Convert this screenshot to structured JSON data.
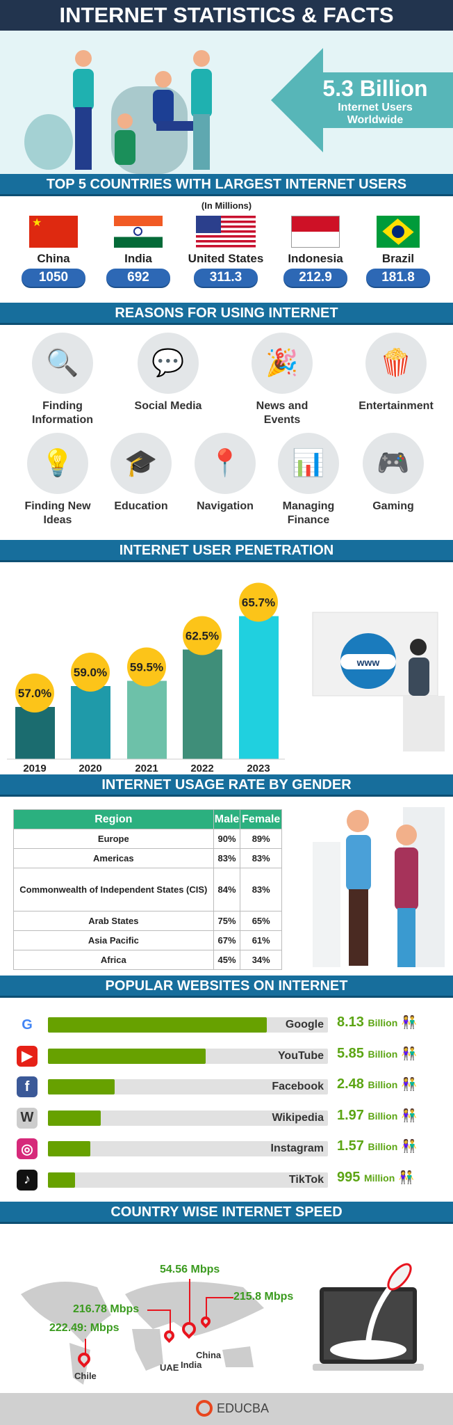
{
  "title": "INTERNET STATISTICS & FACTS",
  "hero": {
    "value": "5.3 Billion",
    "line1": "Internet Users",
    "line2": "Worldwide"
  },
  "top5": {
    "heading": "TOP 5 COUNTRIES WITH LARGEST INTERNET USERS",
    "unit": "(In Millions)",
    "countries": [
      {
        "name": "China",
        "value": "1050"
      },
      {
        "name": "India",
        "value": "692"
      },
      {
        "name": "United States",
        "value": "311.3"
      },
      {
        "name": "Indonesia",
        "value": "212.9"
      },
      {
        "name": "Brazil",
        "value": "181.8"
      }
    ]
  },
  "reasons": {
    "heading": "REASONS FOR USING INTERNET",
    "items": [
      {
        "label": "Finding Information",
        "icon": "magnifier-document-icon"
      },
      {
        "label": "Social Media",
        "icon": "social-media-icon"
      },
      {
        "label": "News and Events",
        "icon": "event-icon"
      },
      {
        "label": "Entertainment",
        "icon": "popcorn-video-icon"
      },
      {
        "label": "Finding New Ideas",
        "icon": "lightbulb-icon"
      },
      {
        "label": "Education",
        "icon": "graduation-cap-icon"
      },
      {
        "label": "Navigation",
        "icon": "location-pin-icon"
      },
      {
        "label": "Managing Finance",
        "icon": "finance-icon"
      },
      {
        "label": "Gaming",
        "icon": "gamepad-icon"
      }
    ]
  },
  "penetration": {
    "heading": "INTERNET USER PENETRATION"
  },
  "chart_data": {
    "type": "bar",
    "categories": [
      "2019",
      "2020",
      "2021",
      "2022",
      "2023"
    ],
    "values": [
      57.0,
      59.0,
      59.5,
      62.5,
      65.7
    ],
    "labels": [
      "57.0%",
      "59.0%",
      "59.5%",
      "62.5%",
      "65.7%"
    ],
    "colors": [
      "#1b6c6f",
      "#1f9aa9",
      "#6dc1a9",
      "#3f8e79",
      "#20d0df"
    ],
    "label_color": "#fcc419"
  },
  "gender": {
    "heading": "INTERNET USAGE RATE BY GENDER",
    "columns": [
      "Region",
      "Male",
      "Female"
    ],
    "rows": [
      [
        "Europe",
        "90%",
        "89%"
      ],
      [
        "Americas",
        "83%",
        "83%"
      ],
      [
        "Commonwealth of Independent States (CIS)",
        "84%",
        "83%"
      ],
      [
        "Arab States",
        "75%",
        "65%"
      ],
      [
        "Asia Pacific",
        "67%",
        "61%"
      ],
      [
        "Africa",
        "45%",
        "34%"
      ]
    ]
  },
  "websites": {
    "heading": "POPULAR WEBSITES ON INTERNET",
    "items": [
      {
        "name": "Google",
        "value": "8.13",
        "unit": "Billion",
        "users_billion": 8.13,
        "icon": "google-icon",
        "color": "#ffffff"
      },
      {
        "name": "YouTube",
        "value": "5.85",
        "unit": "Billion",
        "users_billion": 5.85,
        "icon": "youtube-icon",
        "color": "#e62117"
      },
      {
        "name": "Facebook",
        "value": "2.48",
        "unit": "Billion",
        "users_billion": 2.48,
        "icon": "facebook-icon",
        "color": "#3b5998"
      },
      {
        "name": "Wikipedia",
        "value": "1.97",
        "unit": "Billion",
        "users_billion": 1.97,
        "icon": "wikipedia-icon",
        "color": "#cccccc"
      },
      {
        "name": "Instagram",
        "value": "1.57",
        "unit": "Billion",
        "users_billion": 1.57,
        "icon": "instagram-icon",
        "color": "#d6297a"
      },
      {
        "name": "TikTok",
        "value": "995",
        "unit": "Million",
        "users_billion": 0.995,
        "icon": "tiktok-icon",
        "color": "#111111"
      }
    ]
  },
  "speed": {
    "heading": "COUNTRY WISE INTERNET SPEED",
    "items": [
      {
        "country": "Chile",
        "speed": "222.49: Mbps"
      },
      {
        "country": "UAE",
        "speed": "216.78 Mbps"
      },
      {
        "country": "India",
        "speed": "54.56 Mbps"
      },
      {
        "country": "China",
        "speed": "215.8 Mbps"
      }
    ]
  },
  "footer": {
    "brand": "EDUCBA"
  }
}
